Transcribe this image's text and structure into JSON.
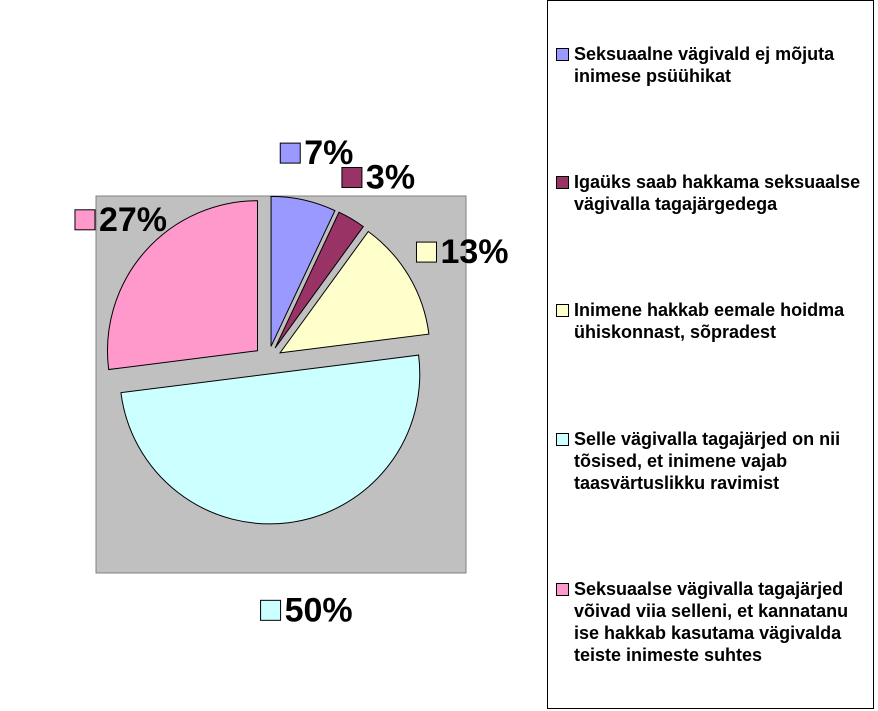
{
  "chart_data": {
    "type": "pie",
    "categories": [
      "Seksuaalne vägivald ej mõjuta inimese psüühikat",
      "Igaüks saab hakkama seksuaalse vägivalla tagajärgedega",
      "Inimene hakkab eemale hoidma ühiskonnast, sõpradest",
      "Selle vägivalla tagajärjed on nii tõsised, et inimene vajab taasvärtuslikku ravimist",
      "Seksuaalse vägivalla tagajärjed võivad viia selleni, et kannatanu ise hakkab kasutama vägivalda teiste inimeste suhtes"
    ],
    "values": [
      7,
      3,
      13,
      50,
      27
    ],
    "value_labels": [
      "7%",
      "3%",
      "13%",
      "50%",
      "27%"
    ],
    "colors": [
      "#9999ff",
      "#993366",
      "#ffffcc",
      "#ccffff",
      "#ff99cc"
    ],
    "legend": "right"
  }
}
